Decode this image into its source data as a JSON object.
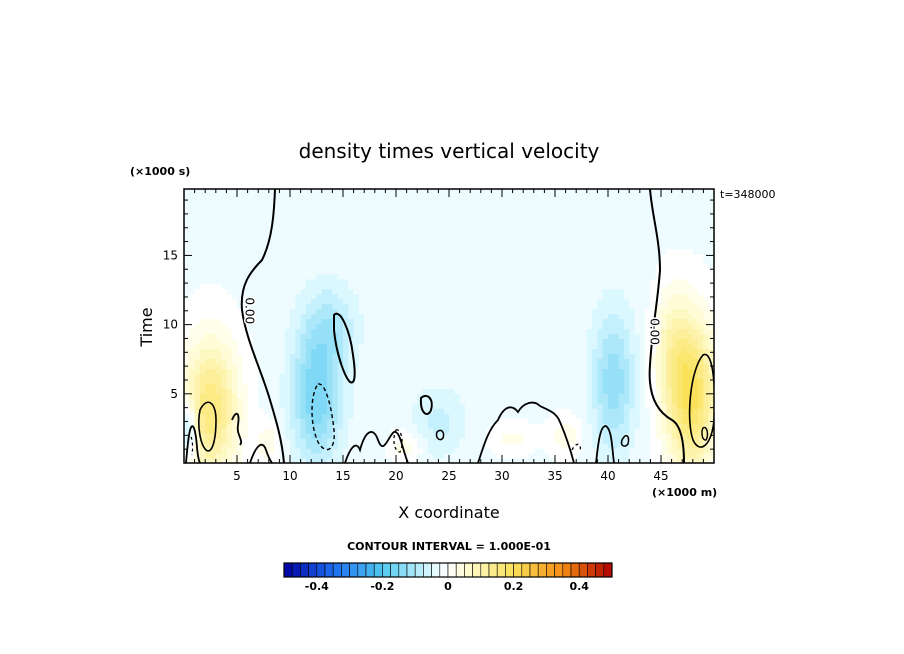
{
  "chart_data": {
    "type": "heatmap",
    "title": "density times vertical velocity",
    "xlabel": "X coordinate",
    "ylabel": "Time",
    "x_unit": "(×1000 m)",
    "y_unit": "(×1000 s)",
    "time_stamp": "t=348000",
    "xlim": [
      0,
      50
    ],
    "ylim": [
      0,
      19.8
    ],
    "x_ticks": [
      5,
      10,
      15,
      20,
      25,
      30,
      35,
      40,
      45
    ],
    "y_ticks": [
      5,
      10,
      15
    ],
    "contour_labels": [
      {
        "text": "0.00",
        "x": 5.8,
        "y": 11.0
      },
      {
        "text": "0.00",
        "x": 44.0,
        "y": 9.5
      }
    ],
    "colorbar": {
      "caption": "CONTOUR INTERVAL = 1.000E-01",
      "range": [
        -0.5,
        0.5
      ],
      "ticks": [
        -0.4,
        -0.2,
        0,
        0.2,
        0.4
      ],
      "tick_labels": [
        "-0.4",
        "-0.2",
        "0",
        "0.2",
        "0.4"
      ],
      "low_color": "#0000a0",
      "mid_color": "#ffffff",
      "high_color": "#b00000"
    },
    "anomalies": [
      {
        "x": 2.5,
        "y": 4.0,
        "sx": 2.6,
        "sy": 5.0,
        "v": 0.18
      },
      {
        "x": 0.5,
        "y": 2.5,
        "sx": 0.8,
        "sy": 2.0,
        "v": -0.12
      },
      {
        "x": 47.8,
        "y": 5.0,
        "sx": 2.4,
        "sy": 5.5,
        "v": 0.22
      },
      {
        "x": 46.0,
        "y": 9.0,
        "sx": 1.6,
        "sy": 4.0,
        "v": 0.06
      },
      {
        "x": 12.5,
        "y": 5.0,
        "sx": 2.3,
        "sy": 5.0,
        "v": -0.14
      },
      {
        "x": 14.0,
        "y": 10.0,
        "sx": 2.5,
        "sy": 3.0,
        "v": -0.06
      },
      {
        "x": 40.5,
        "y": 6.0,
        "sx": 2.0,
        "sy": 5.0,
        "v": -0.11
      },
      {
        "x": 24.0,
        "y": 3.0,
        "sx": 2.5,
        "sy": 2.5,
        "v": -0.05
      },
      {
        "x": 36.0,
        "y": 2.0,
        "sx": 1.5,
        "sy": 1.5,
        "v": 0.05
      },
      {
        "x": 31.0,
        "y": 1.8,
        "sx": 2.0,
        "sy": 1.2,
        "v": 0.04
      },
      {
        "x": 21.0,
        "y": 1.2,
        "sx": 1.5,
        "sy": 1.2,
        "v": 0.05
      },
      {
        "x": 8.0,
        "y": 1.5,
        "sx": 1.2,
        "sy": 1.5,
        "v": 0.05
      }
    ]
  }
}
